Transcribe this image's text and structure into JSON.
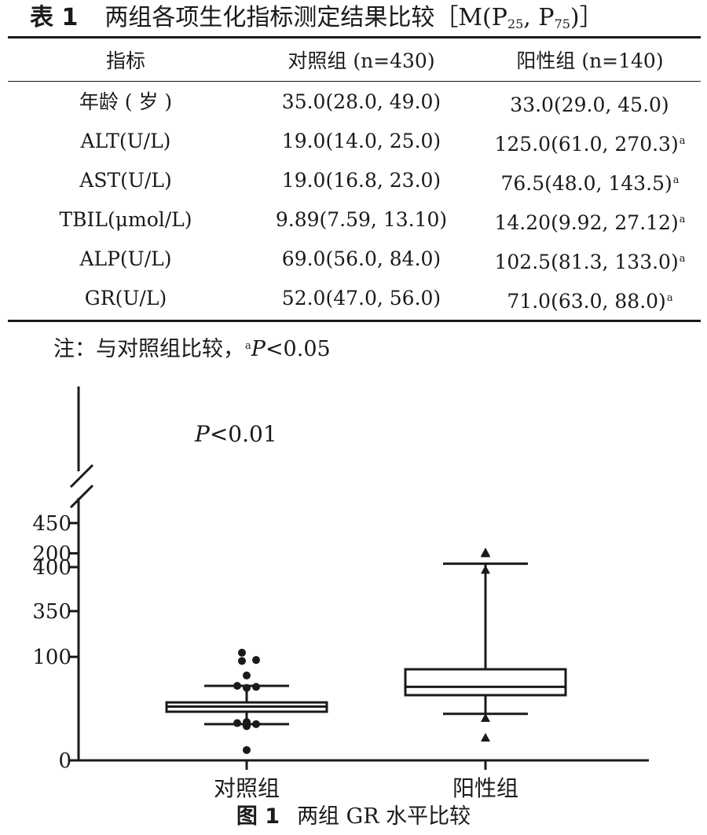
{
  "table": {
    "label": "表 1",
    "title": "两组各项生化指标测定结果比较［M(P",
    "title_sub1": "25",
    "title_mid": ", P",
    "title_sub2": "75",
    "title_end": ")］",
    "headers": [
      "指标",
      "对照组 (n=430)",
      "阳性组 (n=140)"
    ],
    "rows": [
      {
        "name": "年龄 ( 岁 )",
        "control": "35.0(28.0, 49.0)",
        "positive": "33.0(29.0, 45.0)",
        "mark": ""
      },
      {
        "name": "ALT(U/L)",
        "control": "19.0(14.0, 25.0)",
        "positive": "125.0(61.0, 270.3)",
        "mark": "a"
      },
      {
        "name": "AST(U/L)",
        "control": "19.0(16.8, 23.0)",
        "positive": "76.5(48.0, 143.5)",
        "mark": "a"
      },
      {
        "name": "TBIL(μmol/L)",
        "control": "9.89(7.59, 13.10)",
        "positive": "14.20(9.92, 27.12)",
        "mark": "a"
      },
      {
        "name": "ALP(U/L)",
        "control": "69.0(56.0, 84.0)",
        "positive": "102.5(81.3, 133.0)",
        "mark": "a"
      },
      {
        "name": "GR(U/L)",
        "control": "52.0(47.0, 56.0)",
        "positive": "71.0(63.0, 88.0)",
        "mark": "a"
      }
    ],
    "note_prefix": "注：与对照组比较，",
    "note_mark": "a",
    "note_p": "P",
    "note_suffix": "<0.05"
  },
  "figure": {
    "label": "图 1",
    "caption": "两组 GR 水平比较"
  },
  "chart_data": {
    "type": "box",
    "categories": [
      "对照组",
      "阳性组"
    ],
    "yticks": [
      0,
      100,
      200,
      350,
      400,
      450
    ],
    "y_break": [
      250,
      350
    ],
    "annotation_p": "P",
    "annotation_rest": "<0.01",
    "boxes": [
      {
        "category": "对照组",
        "whisker_low": 35,
        "q1": 47,
        "median": 52,
        "q3": 56,
        "whisker_high": 72,
        "outliers": [
          10,
          33,
          34,
          35,
          36,
          37,
          70,
          71,
          72,
          82,
          96,
          97,
          104
        ],
        "marker": "circle"
      },
      {
        "category": "阳性组",
        "whisker_low": 45,
        "q1": 63,
        "median": 71,
        "q3": 88,
        "whisker_high": 190,
        "outliers": [
          22,
          41,
          200,
          201,
          397
        ],
        "marker": "triangle"
      }
    ]
  }
}
